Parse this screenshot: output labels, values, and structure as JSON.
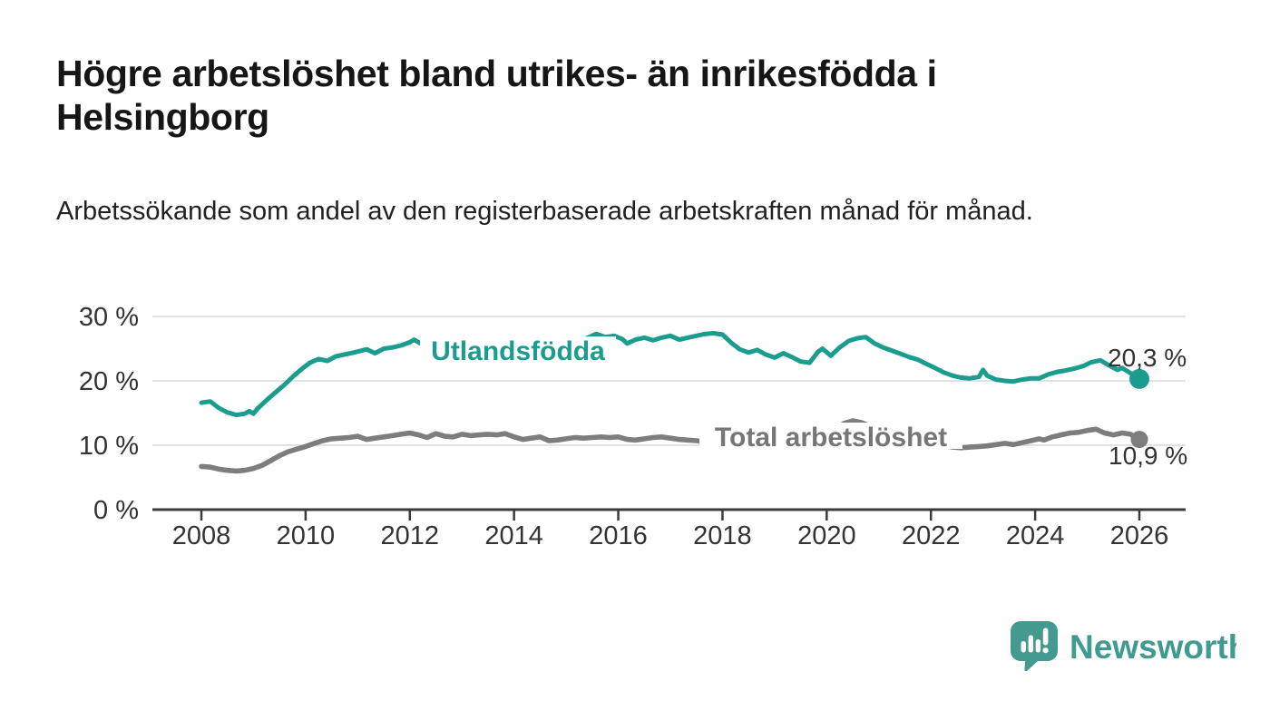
{
  "header": {
    "title": "Högre arbetslöshet bland utrikes- än inrikesfödda i Helsingborg",
    "subtitle": "Arbetssökande som andel av den registerbaserade arbetskraften månad för månad."
  },
  "chart_data": {
    "type": "line",
    "title": "Högre arbetslöshet bland utrikes- än inrikesfödda i Helsingborg",
    "subtitle": "Arbetssökande som andel av den registerbaserade arbetskraften månad för månad.",
    "unit": "percent",
    "grid": true,
    "legend_position": "inline-labels",
    "x_axis": {
      "label": "",
      "tick_years": [
        2008,
        2010,
        2012,
        2014,
        2016,
        2018,
        2020,
        2022,
        2024,
        2026
      ],
      "range": [
        2008,
        2026
      ]
    },
    "y_axis": {
      "label": "",
      "tick_values": [
        0,
        10,
        20,
        30
      ],
      "tick_suffix": " %",
      "range": [
        0,
        30
      ]
    },
    "series": [
      {
        "name": "Utlandsfödda",
        "color": "#1a9c8e",
        "end_value": 20.3,
        "end_label": "20,3 %",
        "points": [
          [
            2008.0,
            16.6
          ],
          [
            2008.17,
            16.8
          ],
          [
            2008.33,
            15.8
          ],
          [
            2008.5,
            15.1
          ],
          [
            2008.67,
            14.7
          ],
          [
            2008.83,
            14.9
          ],
          [
            2008.92,
            15.3
          ],
          [
            2009.0,
            14.9
          ],
          [
            2009.08,
            15.7
          ],
          [
            2009.25,
            17.0
          ],
          [
            2009.42,
            18.2
          ],
          [
            2009.58,
            19.3
          ],
          [
            2009.75,
            20.6
          ],
          [
            2009.92,
            21.8
          ],
          [
            2010.08,
            22.8
          ],
          [
            2010.25,
            23.4
          ],
          [
            2010.42,
            23.1
          ],
          [
            2010.58,
            23.8
          ],
          [
            2010.75,
            24.1
          ],
          [
            2010.92,
            24.4
          ],
          [
            2011.08,
            24.7
          ],
          [
            2011.17,
            24.9
          ],
          [
            2011.33,
            24.3
          ],
          [
            2011.5,
            25.0
          ],
          [
            2011.67,
            25.2
          ],
          [
            2011.83,
            25.5
          ],
          [
            2012.0,
            26.0
          ],
          [
            2012.08,
            26.4
          ],
          [
            2012.25,
            25.6
          ],
          [
            2012.42,
            25.3
          ],
          [
            2012.58,
            25.7
          ],
          [
            2012.75,
            25.4
          ],
          [
            2012.92,
            25.6
          ],
          [
            2013.08,
            25.7
          ],
          [
            2013.25,
            25.9
          ],
          [
            2013.42,
            26.0
          ],
          [
            2013.58,
            25.7
          ],
          [
            2013.75,
            24.9
          ],
          [
            2013.92,
            23.3
          ],
          [
            2014.08,
            24.4
          ],
          [
            2014.25,
            25.1
          ],
          [
            2014.42,
            25.3
          ],
          [
            2014.58,
            25.5
          ],
          [
            2014.75,
            25.7
          ],
          [
            2014.92,
            25.8
          ],
          [
            2015.08,
            26.0
          ],
          [
            2015.25,
            26.2
          ],
          [
            2015.42,
            26.7
          ],
          [
            2015.58,
            27.3
          ],
          [
            2015.75,
            26.8
          ],
          [
            2015.92,
            27.0
          ],
          [
            2016.08,
            26.5
          ],
          [
            2016.17,
            25.8
          ],
          [
            2016.33,
            26.4
          ],
          [
            2016.5,
            26.7
          ],
          [
            2016.67,
            26.3
          ],
          [
            2016.83,
            26.7
          ],
          [
            2017.0,
            27.0
          ],
          [
            2017.17,
            26.4
          ],
          [
            2017.33,
            26.7
          ],
          [
            2017.5,
            27.0
          ],
          [
            2017.67,
            27.3
          ],
          [
            2017.83,
            27.4
          ],
          [
            2018.0,
            27.2
          ],
          [
            2018.17,
            25.9
          ],
          [
            2018.33,
            24.9
          ],
          [
            2018.5,
            24.4
          ],
          [
            2018.67,
            24.8
          ],
          [
            2018.83,
            24.1
          ],
          [
            2019.0,
            23.6
          ],
          [
            2019.17,
            24.3
          ],
          [
            2019.33,
            23.7
          ],
          [
            2019.5,
            23.0
          ],
          [
            2019.67,
            22.8
          ],
          [
            2019.83,
            24.5
          ],
          [
            2019.92,
            25.0
          ],
          [
            2020.08,
            23.9
          ],
          [
            2020.25,
            25.2
          ],
          [
            2020.42,
            26.2
          ],
          [
            2020.58,
            26.6
          ],
          [
            2020.75,
            26.8
          ],
          [
            2020.92,
            25.8
          ],
          [
            2021.08,
            25.2
          ],
          [
            2021.25,
            24.7
          ],
          [
            2021.42,
            24.2
          ],
          [
            2021.58,
            23.7
          ],
          [
            2021.75,
            23.3
          ],
          [
            2021.92,
            22.6
          ],
          [
            2022.08,
            22.0
          ],
          [
            2022.25,
            21.3
          ],
          [
            2022.42,
            20.8
          ],
          [
            2022.58,
            20.5
          ],
          [
            2022.75,
            20.4
          ],
          [
            2022.92,
            20.6
          ],
          [
            2023.0,
            21.7
          ],
          [
            2023.08,
            20.8
          ],
          [
            2023.25,
            20.2
          ],
          [
            2023.42,
            20.0
          ],
          [
            2023.58,
            19.9
          ],
          [
            2023.75,
            20.2
          ],
          [
            2023.92,
            20.4
          ],
          [
            2024.08,
            20.4
          ],
          [
            2024.25,
            21.0
          ],
          [
            2024.42,
            21.4
          ],
          [
            2024.58,
            21.6
          ],
          [
            2024.75,
            21.9
          ],
          [
            2024.92,
            22.3
          ],
          [
            2025.08,
            22.9
          ],
          [
            2025.25,
            23.2
          ],
          [
            2025.42,
            22.4
          ],
          [
            2025.58,
            21.7
          ],
          [
            2025.67,
            22.0
          ],
          [
            2025.83,
            21.2
          ],
          [
            2025.92,
            20.8
          ],
          [
            2026.0,
            20.3
          ]
        ]
      },
      {
        "name": "Total arbetslöshet",
        "color": "#7d7d7d",
        "end_value": 10.9,
        "end_label": "10,9 %",
        "points": [
          [
            2008.0,
            6.7
          ],
          [
            2008.17,
            6.6
          ],
          [
            2008.33,
            6.3
          ],
          [
            2008.5,
            6.1
          ],
          [
            2008.67,
            6.0
          ],
          [
            2008.83,
            6.1
          ],
          [
            2009.0,
            6.4
          ],
          [
            2009.17,
            6.9
          ],
          [
            2009.33,
            7.6
          ],
          [
            2009.5,
            8.4
          ],
          [
            2009.67,
            9.0
          ],
          [
            2009.83,
            9.4
          ],
          [
            2010.0,
            9.8
          ],
          [
            2010.17,
            10.3
          ],
          [
            2010.33,
            10.7
          ],
          [
            2010.5,
            11.0
          ],
          [
            2010.67,
            11.1
          ],
          [
            2010.83,
            11.2
          ],
          [
            2011.0,
            11.4
          ],
          [
            2011.17,
            10.9
          ],
          [
            2011.33,
            11.1
          ],
          [
            2011.5,
            11.3
          ],
          [
            2011.67,
            11.5
          ],
          [
            2011.83,
            11.7
          ],
          [
            2012.0,
            11.9
          ],
          [
            2012.17,
            11.6
          ],
          [
            2012.33,
            11.2
          ],
          [
            2012.5,
            11.8
          ],
          [
            2012.67,
            11.4
          ],
          [
            2012.83,
            11.3
          ],
          [
            2013.0,
            11.7
          ],
          [
            2013.17,
            11.5
          ],
          [
            2013.33,
            11.6
          ],
          [
            2013.5,
            11.7
          ],
          [
            2013.67,
            11.6
          ],
          [
            2013.83,
            11.8
          ],
          [
            2014.0,
            11.3
          ],
          [
            2014.17,
            10.9
          ],
          [
            2014.33,
            11.1
          ],
          [
            2014.5,
            11.3
          ],
          [
            2014.67,
            10.7
          ],
          [
            2014.83,
            10.8
          ],
          [
            2015.0,
            11.0
          ],
          [
            2015.17,
            11.2
          ],
          [
            2015.33,
            11.1
          ],
          [
            2015.5,
            11.2
          ],
          [
            2015.67,
            11.3
          ],
          [
            2015.83,
            11.2
          ],
          [
            2016.0,
            11.3
          ],
          [
            2016.17,
            10.9
          ],
          [
            2016.33,
            10.8
          ],
          [
            2016.5,
            11.0
          ],
          [
            2016.67,
            11.2
          ],
          [
            2016.83,
            11.3
          ],
          [
            2017.0,
            11.1
          ],
          [
            2017.17,
            10.9
          ],
          [
            2017.33,
            10.8
          ],
          [
            2017.5,
            10.7
          ],
          [
            2017.67,
            10.5
          ],
          [
            2017.83,
            10.4
          ],
          [
            2018.0,
            10.3
          ],
          [
            2018.25,
            10.2
          ],
          [
            2018.5,
            10.1
          ],
          [
            2018.75,
            10.2
          ],
          [
            2019.0,
            10.4
          ],
          [
            2019.25,
            10.4
          ],
          [
            2019.5,
            10.5
          ],
          [
            2019.75,
            10.8
          ],
          [
            2020.0,
            11.3
          ],
          [
            2020.17,
            12.4
          ],
          [
            2020.33,
            13.4
          ],
          [
            2020.5,
            13.8
          ],
          [
            2020.67,
            13.5
          ],
          [
            2020.83,
            13.0
          ],
          [
            2021.0,
            12.6
          ],
          [
            2021.25,
            12.0
          ],
          [
            2021.5,
            11.4
          ],
          [
            2021.75,
            10.9
          ],
          [
            2022.0,
            10.4
          ],
          [
            2022.25,
            10.0
          ],
          [
            2022.42,
            9.7
          ],
          [
            2022.58,
            9.6
          ],
          [
            2022.75,
            9.7
          ],
          [
            2022.92,
            9.8
          ],
          [
            2023.08,
            9.9
          ],
          [
            2023.25,
            10.1
          ],
          [
            2023.42,
            10.3
          ],
          [
            2023.58,
            10.1
          ],
          [
            2023.75,
            10.4
          ],
          [
            2023.92,
            10.7
          ],
          [
            2024.08,
            11.0
          ],
          [
            2024.17,
            10.8
          ],
          [
            2024.33,
            11.3
          ],
          [
            2024.5,
            11.6
          ],
          [
            2024.67,
            11.9
          ],
          [
            2024.83,
            12.0
          ],
          [
            2025.0,
            12.3
          ],
          [
            2025.17,
            12.5
          ],
          [
            2025.33,
            11.9
          ],
          [
            2025.5,
            11.6
          ],
          [
            2025.67,
            11.9
          ],
          [
            2025.83,
            11.7
          ],
          [
            2026.0,
            10.9
          ]
        ]
      }
    ]
  },
  "branding": {
    "name": "Newsworthy",
    "color": "#3f9a90"
  }
}
